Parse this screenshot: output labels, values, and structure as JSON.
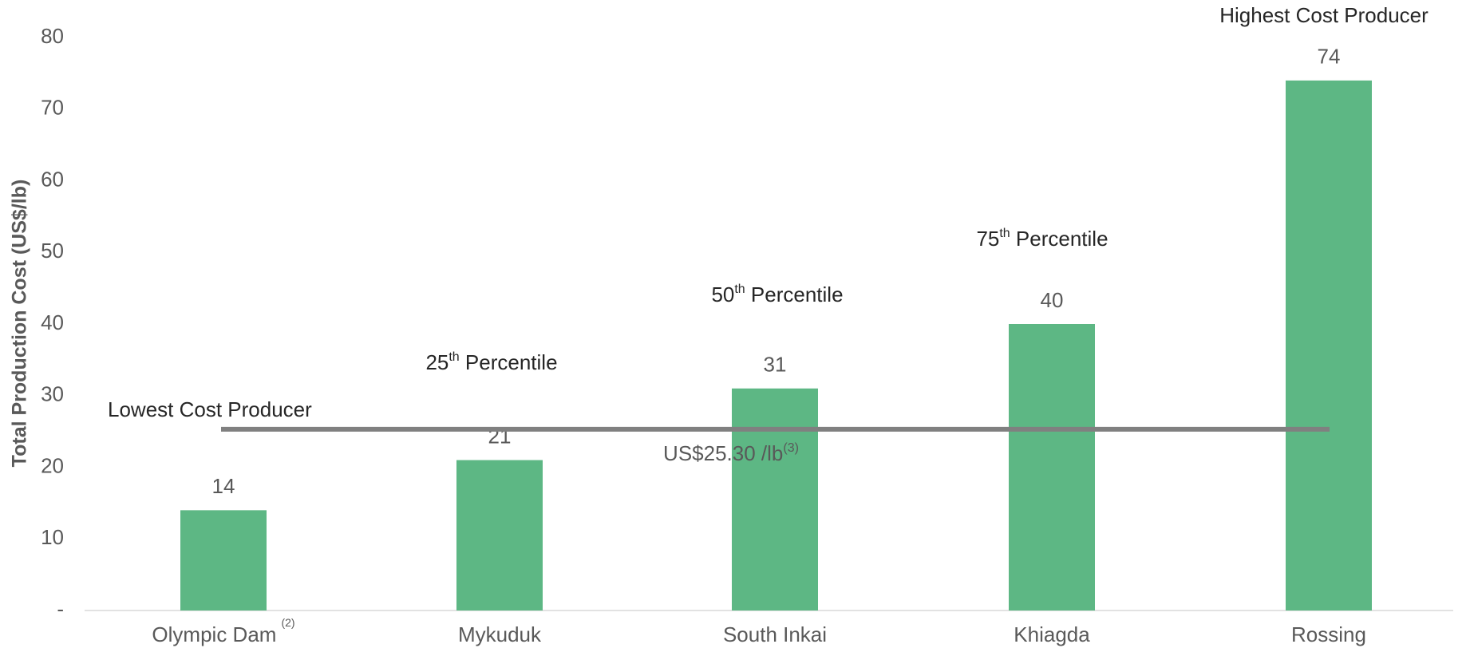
{
  "chart_data": {
    "type": "bar",
    "y_label": "Total Production Cost (US$/lb)",
    "categories": [
      "Olympic Dam",
      "Mykuduk",
      "South Inkai",
      "Khiagda",
      "Rossing"
    ],
    "category_notes": [
      "(2)",
      null,
      null,
      null,
      null
    ],
    "values": [
      14,
      21,
      31,
      40,
      74
    ],
    "color": "#5db784",
    "ylim": [
      0,
      80
    ],
    "yticks": [
      {
        "value": 0,
        "label": "-"
      },
      10,
      20,
      30,
      40,
      50,
      60,
      70,
      80
    ],
    "grid": false,
    "reference_line": {
      "value": 25.3,
      "label": "US$25.30 /lb",
      "note": "(3)",
      "color": "#808080"
    },
    "annotations": [
      {
        "parts": [
          "Lowest Cost Producer"
        ]
      },
      {
        "parts": [
          "25",
          "th",
          " Percentile"
        ]
      },
      {
        "parts": [
          "50",
          "th",
          " Percentile"
        ]
      },
      {
        "parts": [
          "75",
          "th",
          " Percentile"
        ]
      },
      {
        "parts": [
          "Highest Cost Producer"
        ]
      }
    ]
  }
}
